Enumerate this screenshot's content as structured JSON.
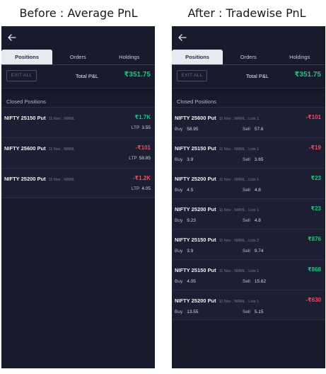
{
  "captions": {
    "left": "Before : Average PnL",
    "right": "After : Tradewise PnL"
  },
  "panel_common": {
    "tabs": [
      "Positions",
      "Orders",
      "Holdings"
    ],
    "exit_all": "EXIT ALL",
    "total_pnl_label": "Total P&L",
    "total_pnl_value": "₹351.75",
    "section_title": "Closed Positions",
    "back_icon": "arrow-left-icon",
    "colors": {
      "positive": "#21c47a",
      "negative": "#ef4d5d",
      "background": "#181a2e"
    }
  },
  "before": {
    "rows": [
      {
        "name": "NIFTY 25150 Put",
        "meta": "11 Nov . NRML",
        "pnl": "₹1.7K",
        "pnl_sign": "pos",
        "ltp_label": "LTP",
        "ltp": "3.55"
      },
      {
        "name": "NIFTY 25600 Put",
        "meta": "11 Nov . NRML",
        "pnl": "-₹101",
        "pnl_sign": "neg",
        "ltp_label": "LTP",
        "ltp": "58.85"
      },
      {
        "name": "NIFTY 25200 Put",
        "meta": "11 Nov . NRML",
        "pnl": "-₹1.2K",
        "pnl_sign": "neg",
        "ltp_label": "LTP",
        "ltp": "4.05"
      }
    ]
  },
  "after": {
    "buy_label": "Buy",
    "sell_label": "Sell",
    "rows": [
      {
        "name": "NIFTY 25600 Put",
        "meta": "11 Nov . NRML . Lots 1",
        "pnl": "-₹101",
        "pnl_sign": "neg",
        "buy": "58.95",
        "sell": "57.6"
      },
      {
        "name": "NIFTY 25150 Put",
        "meta": "11 Nov . NRML . Lots 1",
        "pnl": "-₹19",
        "pnl_sign": "neg",
        "buy": "3.9",
        "sell": "3.65"
      },
      {
        "name": "NIFTY 25200 Put",
        "meta": "11 Nov . NRML . Lots 1",
        "pnl": "₹23",
        "pnl_sign": "pos",
        "buy": "4.5",
        "sell": "4.8"
      },
      {
        "name": "NIFTY 25200 Put",
        "meta": "11 Nov . NRML . Lots 1",
        "pnl": "₹23",
        "pnl_sign": "pos",
        "buy": "9.23",
        "sell": "4.8"
      },
      {
        "name": "NIFTY 25150 Put",
        "meta": "11 Nov . NRML . Lots 2",
        "pnl": "₹876",
        "pnl_sign": "pos",
        "buy": "3.9",
        "sell": "9.74"
      },
      {
        "name": "NIFTY 25150 Put",
        "meta": "11 Nov . NRML . Lots 1",
        "pnl": "₹868",
        "pnl_sign": "pos",
        "buy": "4.05",
        "sell": "15.62"
      },
      {
        "name": "NIFTY 25200 Put",
        "meta": "11 Nov . NRML . Lots 1",
        "pnl": "-₹630",
        "pnl_sign": "neg",
        "buy": "13.55",
        "sell": "5.15"
      }
    ]
  }
}
